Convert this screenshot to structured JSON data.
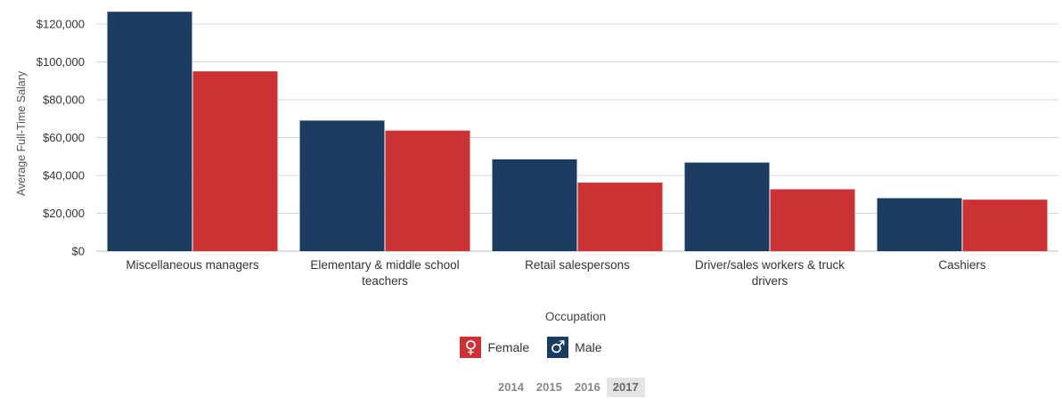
{
  "chart_data": {
    "type": "bar",
    "xlabel": "Occupation",
    "ylabel": "Average Full-Time Salary",
    "ylim": [
      0,
      130000
    ],
    "yticks": [
      0,
      20000,
      40000,
      60000,
      80000,
      100000,
      120000
    ],
    "ytick_labels": [
      "$0",
      "$20,000",
      "$40,000",
      "$60,000",
      "$80,000",
      "$100,000",
      "$120,000"
    ],
    "grid": true,
    "legend_position": "bottom-center",
    "categories": [
      [
        "Miscellaneous managers"
      ],
      [
        "Elementary & middle school",
        "teachers"
      ],
      [
        "Retail salespersons"
      ],
      [
        "Driver/sales workers & truck",
        "drivers"
      ],
      [
        "Cashiers"
      ]
    ],
    "series": [
      {
        "name": "Male",
        "color": "#1b3c61",
        "values": [
          126500,
          69000,
          48500,
          46800,
          28000
        ]
      },
      {
        "name": "Female",
        "color": "#cc3233",
        "values": [
          95000,
          63700,
          36200,
          32700,
          27200
        ]
      }
    ]
  },
  "legend": {
    "female": {
      "label": "Female",
      "icon": "female-icon",
      "color": "#cc3233",
      "glyph": "♀"
    },
    "male": {
      "label": "Male",
      "icon": "male-icon",
      "color": "#1b3c61",
      "glyph": "♂"
    }
  },
  "years": {
    "options": [
      "2014",
      "2015",
      "2016",
      "2017"
    ],
    "selected": "2017"
  }
}
